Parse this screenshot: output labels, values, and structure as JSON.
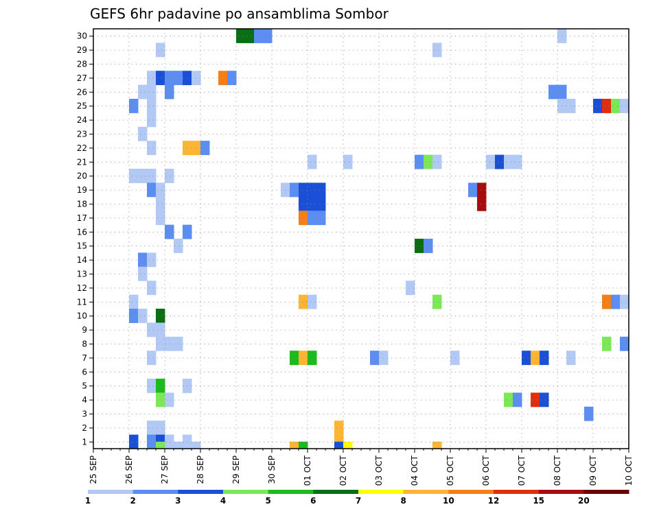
{
  "chart_data": {
    "type": "heatmap",
    "title": "GEFS 6hr padavine po ansamblima Sombor",
    "xlabel": "",
    "ylabel": "",
    "x_tick_labels": [
      "25 SEP",
      "26 SEP",
      "27 SEP",
      "28 SEP",
      "29 SEP",
      "30 SEP",
      "01 OCT",
      "02 OCT",
      "03 OCT",
      "04 OCT",
      "05 OCT",
      "06 OCT",
      "07 OCT",
      "08 OCT",
      "09 OCT",
      "10 OCT"
    ],
    "y_tick_labels": [
      "1",
      "2",
      "3",
      "4",
      "5",
      "6",
      "7",
      "8",
      "9",
      "10",
      "11",
      "12",
      "13",
      "14",
      "15",
      "16",
      "17",
      "18",
      "19",
      "20",
      "21",
      "22",
      "23",
      "24",
      "25",
      "26",
      "27",
      "28",
      "29",
      "30"
    ],
    "members": 30,
    "steps_per_day": 4,
    "days": 15,
    "grid": true,
    "colorbar": {
      "labels": [
        "1",
        "2",
        "3",
        "4",
        "5",
        "6",
        "7",
        "8",
        "10",
        "12",
        "15",
        "20"
      ],
      "colors": [
        "#b3c9f5",
        "#5b8ef0",
        "#1b4fd6",
        "#7de857",
        "#1cba1c",
        "#0b6e12",
        "#ffff00",
        "#fbb532",
        "#f57f17",
        "#e02d10",
        "#a80d0d",
        "#6e0000"
      ]
    },
    "cells": [
      [
        1,
        11,
        2
      ],
      [
        3,
        11,
        0
      ],
      [
        4,
        11,
        0
      ],
      [
        5,
        11,
        1
      ],
      [
        3,
        10,
        1
      ],
      [
        5,
        10,
        0
      ],
      [
        6,
        10,
        0
      ],
      [
        7,
        10,
        1
      ],
      [
        11,
        10,
        0
      ],
      [
        12,
        10,
        2
      ],
      [
        10,
        7,
        0
      ],
      [
        8,
        10,
        0
      ],
      [
        9,
        10,
        0
      ],
      [
        5,
        9,
        0
      ],
      [
        6,
        9,
        0
      ],
      [
        1,
        9,
        0
      ],
      [
        3,
        9,
        2
      ],
      [
        4,
        9,
        1
      ],
      [
        1,
        8,
        2
      ],
      [
        3,
        8,
        2
      ],
      [
        4,
        8,
        2
      ],
      [
        3,
        7,
        1
      ],
      [
        9,
        7,
        8
      ],
      [
        10,
        7,
        0
      ],
      [
        5,
        7,
        0
      ],
      [
        6,
        7,
        0
      ],
      [
        6,
        6,
        0
      ],
      [
        3,
        6,
        1
      ],
      [
        5,
        6,
        0
      ],
      [
        6,
        6,
        0
      ],
      [
        2,
        6,
        0
      ],
      [
        3,
        6,
        0
      ],
      [
        4,
        6,
        0
      ],
      [
        6,
        6,
        1
      ],
      [
        2,
        6,
        0
      ],
      [
        3,
        6,
        0
      ],
      [
        4,
        6,
        0
      ],
      [
        5,
        6,
        2
      ],
      [
        6,
        6,
        2
      ],
      [
        7,
        6,
        1
      ],
      [
        11,
        6,
        1
      ],
      [
        12,
        6,
        0
      ],
      [
        13,
        6,
        0
      ],
      [
        14,
        6,
        0
      ],
      [
        18,
        7,
        3
      ],
      [
        19,
        7,
        3
      ],
      [
        20,
        7,
        4
      ],
      [
        23,
        7,
        0
      ],
      [
        24,
        7,
        0
      ],
      [
        25,
        7,
        1
      ],
      [
        15,
        8,
        3
      ],
      [
        16,
        8,
        3
      ],
      [
        17,
        8,
        3
      ],
      [
        18,
        8,
        4
      ],
      [
        19,
        8,
        5
      ],
      [
        20,
        8,
        6
      ],
      [
        21,
        8,
        0
      ],
      [
        22,
        8,
        0
      ],
      [
        23,
        8,
        0
      ],
      [
        10,
        8,
        5
      ],
      [
        11,
        8,
        5
      ],
      [
        12,
        8,
        6
      ],
      [
        13,
        8,
        6
      ]
    ],
    "bottom_row": [
      [
        5,
        0
      ],
      [
        6,
        0
      ],
      [
        7,
        2
      ],
      [
        8,
        1
      ],
      [
        9,
        1
      ],
      [
        10,
        1
      ],
      [
        11,
        1
      ],
      [
        12,
        1
      ],
      [
        13,
        1
      ],
      [
        14,
        1
      ],
      [
        15,
        1
      ],
      [
        16,
        0
      ],
      [
        17,
        0
      ]
    ]
  }
}
